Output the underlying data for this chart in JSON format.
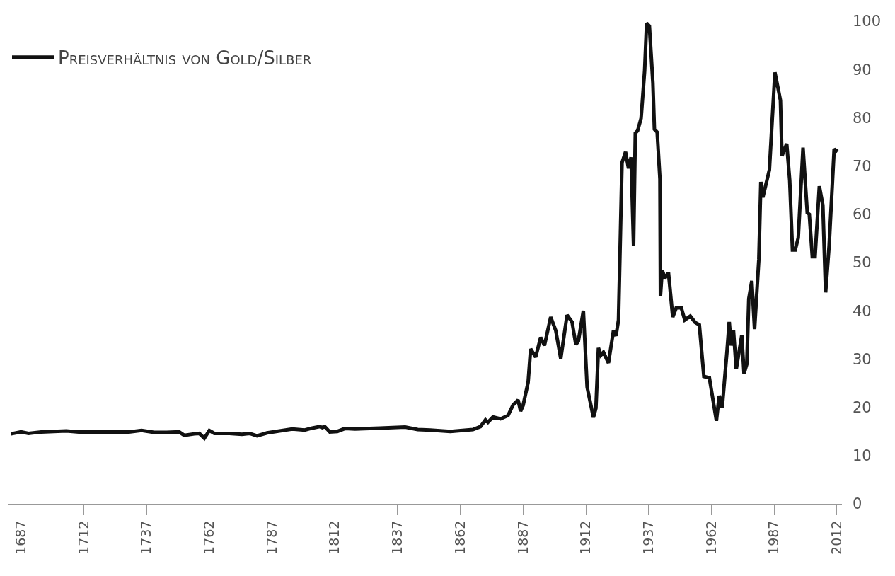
{
  "chart_data": {
    "type": "line",
    "legend": "top left",
    "grid": false,
    "marker": "none",
    "line_style": "solid",
    "xlim": [
      1682,
      2014
    ],
    "xticks": [
      1687,
      1712,
      1737,
      1762,
      1787,
      1812,
      1837,
      1862,
      1887,
      1912,
      1937,
      1962,
      1987,
      2012
    ],
    "ylim": [
      0,
      100
    ],
    "yticks": [
      0,
      10,
      20,
      30,
      40,
      50,
      60,
      70,
      80,
      90,
      100
    ],
    "series": [
      {
        "name": "Preisverhältnis von Gold/Silber",
        "color": "#111111",
        "x": [
          1683,
          1687,
          1690,
          1695,
          1700,
          1705,
          1710,
          1720,
          1730,
          1735,
          1740,
          1745,
          1750,
          1752,
          1756,
          1758,
          1760,
          1762,
          1764,
          1770,
          1775,
          1778,
          1781,
          1785,
          1790,
          1795,
          1800,
          1803,
          1806,
          1807,
          1808,
          1810,
          1813,
          1816,
          1820,
          1830,
          1840,
          1845,
          1850,
          1858,
          1867,
          1870,
          1872,
          1873,
          1875,
          1878,
          1881,
          1883,
          1885,
          1886,
          1887,
          1889,
          1890,
          1892,
          1894,
          1895.5,
          1898,
          1900,
          1902,
          1904.5,
          1906.5,
          1908,
          1909,
          1911,
          1912.5,
          1915,
          1916,
          1917,
          1918,
          1919,
          1921,
          1923,
          1924,
          1925,
          1926.4,
          1927.8,
          1929,
          1930,
          1931,
          1931.7,
          1932.6,
          1934,
          1935.4,
          1936.2,
          1937.3,
          1938.7,
          1939.3,
          1940.4,
          1941.5,
          1941.7,
          1942.4,
          1943.5,
          1944.9,
          1946.6,
          1948,
          1950,
          1951.4,
          1953.6,
          1955.5,
          1957.2,
          1959,
          1961.2,
          1964,
          1965.1,
          1966.3,
          1968.2,
          1969.1,
          1969.9,
          1970.8,
          1971.9,
          1974.1,
          1975,
          1976.1,
          1976.9,
          1978.1,
          1979.2,
          1980.9,
          1981.7,
          1982.5,
          1985.1,
          1987.3,
          1989.5,
          1990.1,
          1992,
          1993.2,
          1994.3,
          1995.4,
          1996.6,
          1998.5,
          2000.2,
          2001,
          2002.2,
          2003.3,
          2005,
          2006.4,
          2007.5,
          2008.9,
          2010.9,
          2012.3
        ],
        "values": [
          14.5,
          14.9,
          14.6,
          14.9,
          15.0,
          15.1,
          14.9,
          14.9,
          14.9,
          15.2,
          14.8,
          14.8,
          14.9,
          14.2,
          14.5,
          14.6,
          13.6,
          15.2,
          14.6,
          14.6,
          14.4,
          14.6,
          14.1,
          14.7,
          15.1,
          15.5,
          15.3,
          15.7,
          16.0,
          15.8,
          16.0,
          14.9,
          15.0,
          15.6,
          15.5,
          15.7,
          15.9,
          15.4,
          15.3,
          15.0,
          15.4,
          16.0,
          17.4,
          16.9,
          18.0,
          17.6,
          18.3,
          20.5,
          21.5,
          19.2,
          20.4,
          25.2,
          32.1,
          30.4,
          34.5,
          32.8,
          38.7,
          35.9,
          30.1,
          39.1,
          37.7,
          33.0,
          33.7,
          40.0,
          24.2,
          17.9,
          19.8,
          32.3,
          30.8,
          31.4,
          29.2,
          35.9,
          34.8,
          38.1,
          70.7,
          72.9,
          69.5,
          71.8,
          53.5,
          76.8,
          77.3,
          79.9,
          89.7,
          99.6,
          99.0,
          87.2,
          77.6,
          77.0,
          67.3,
          43.1,
          48.4,
          46.8,
          47.9,
          38.7,
          40.6,
          40.6,
          38.1,
          38.9,
          37.6,
          37.1,
          26.4,
          26.1,
          17.2,
          22.4,
          19.9,
          31.5,
          37.7,
          32.8,
          35.9,
          27.9,
          34.9,
          27.0,
          28.9,
          42.5,
          46.2,
          36.2,
          50.6,
          66.7,
          63.5,
          69.2,
          89.4,
          83.6,
          72.1,
          74.6,
          67.0,
          52.6,
          52.6,
          55.1,
          73.8,
          60.3,
          60.0,
          51.2,
          51.2,
          65.8,
          61.9,
          43.8,
          53.5,
          73.5,
          73.0
        ]
      }
    ]
  }
}
